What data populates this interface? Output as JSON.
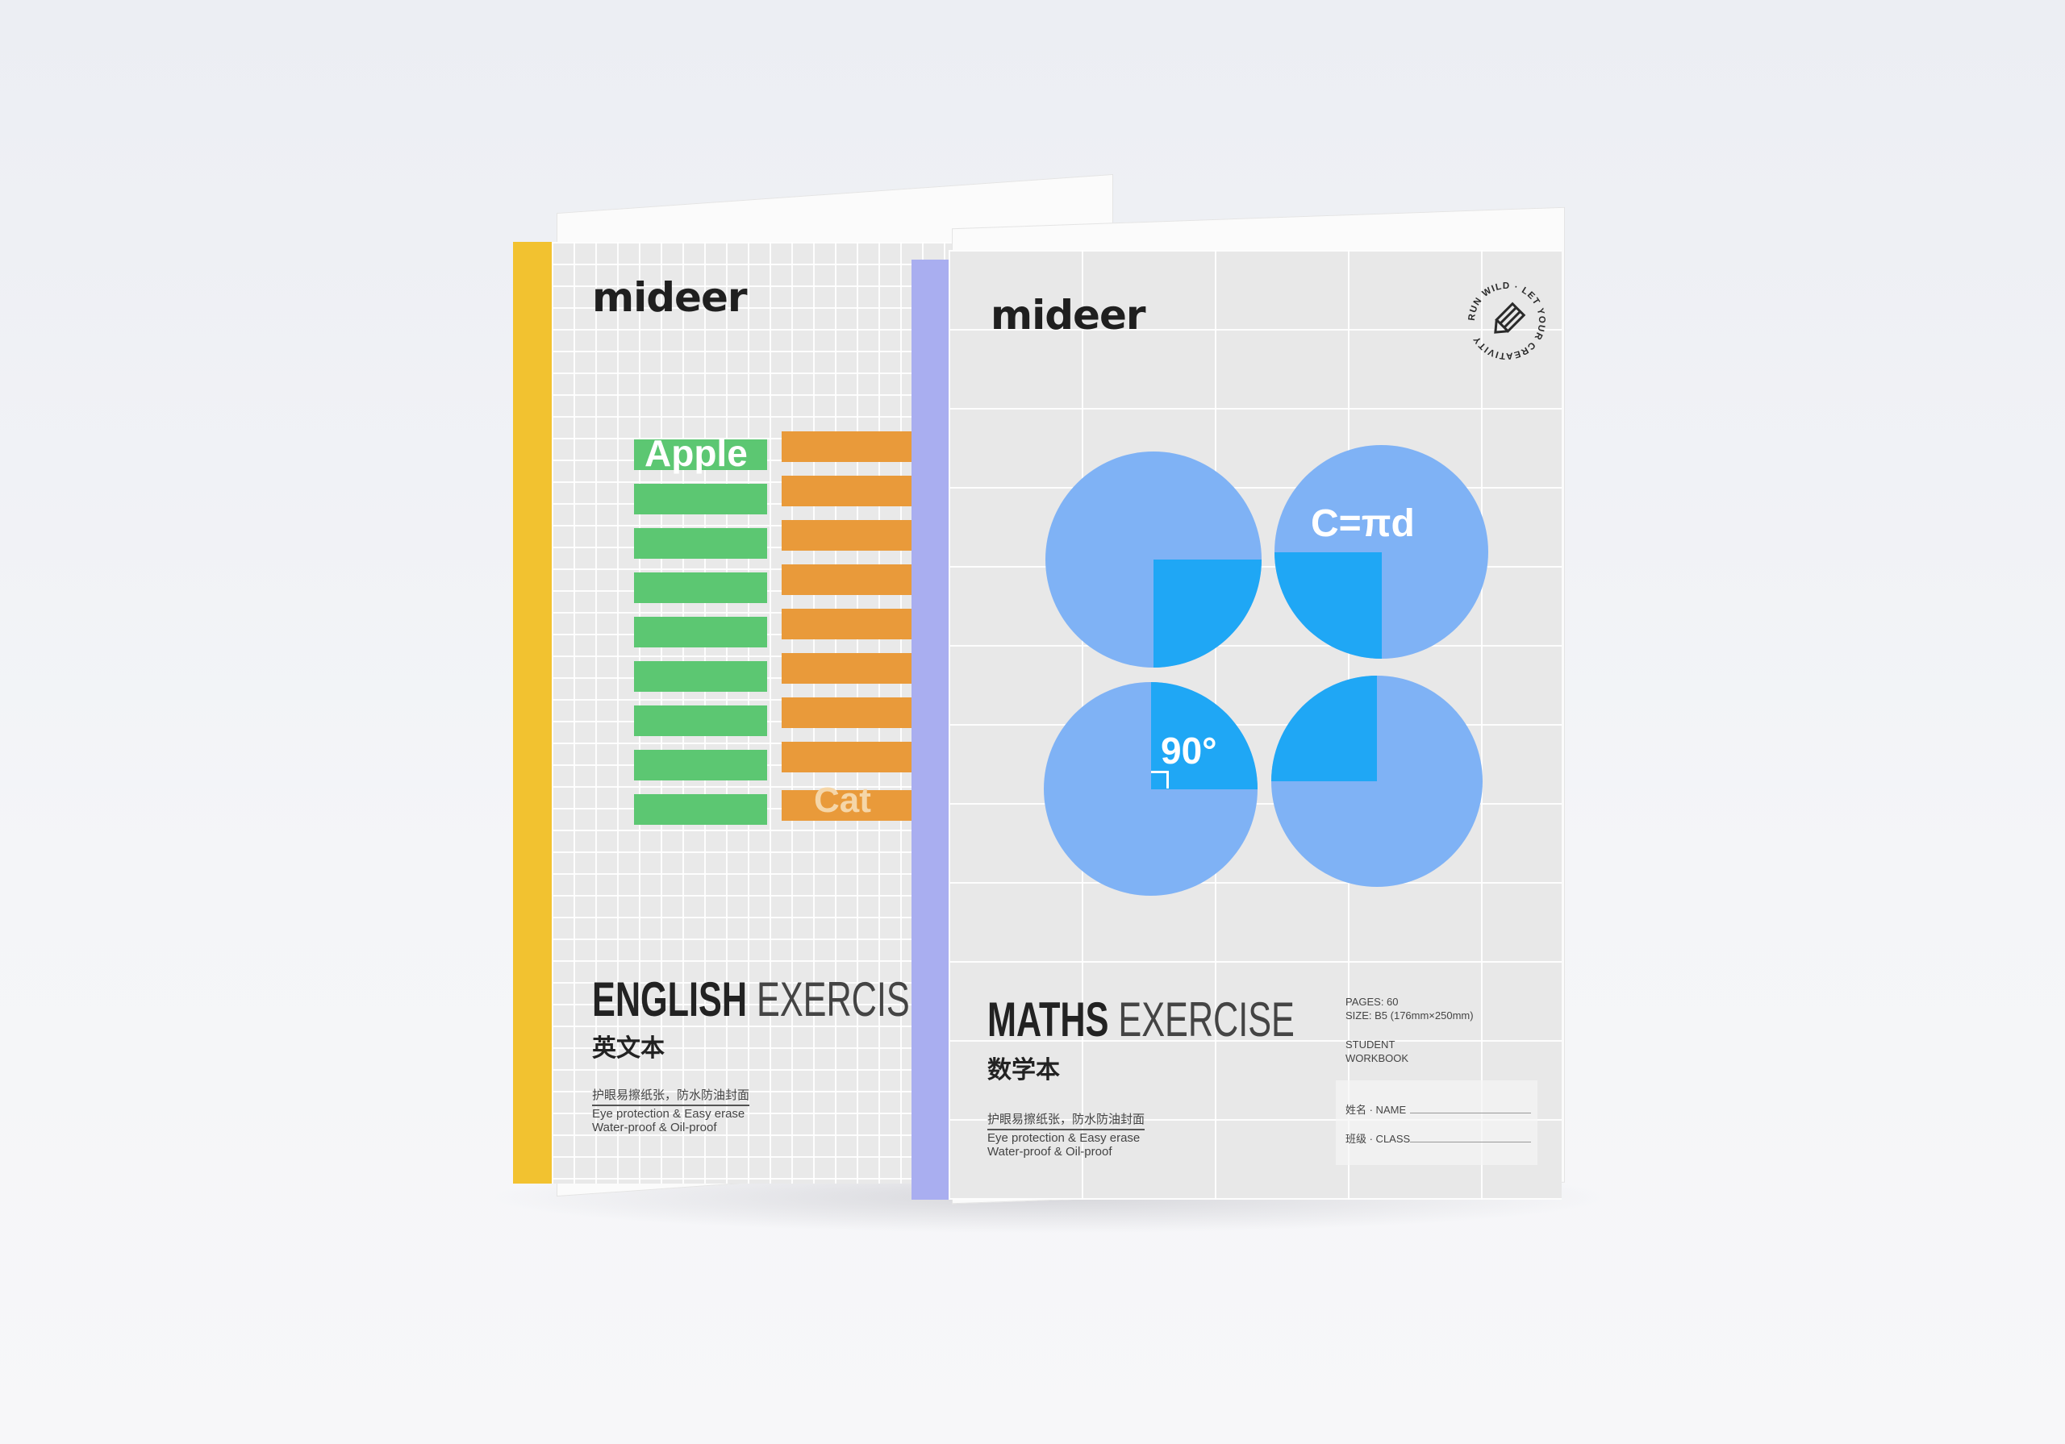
{
  "english_book": {
    "brand": "mideer",
    "words": [
      "Apple",
      "Cat"
    ],
    "title_bold": "ENGLISH",
    "title_light": "EXERCISE",
    "title_cn": "英文本",
    "feature_cn": "护眼易擦纸张，防水防油封面",
    "feature_en_1": "Eye protection & Easy erase",
    "feature_en_2": "Water-proof & Oil-proof",
    "spine_color": "#f2c230",
    "green": "#5cc772",
    "orange": "#e99a3a"
  },
  "maths_book": {
    "brand": "mideer",
    "badge_text": "RUN WILD · LET YOUR CREATIVITY",
    "formula": "C=πd",
    "angle": "90°",
    "title_bold": "MATHS",
    "title_light": "EXERCISE",
    "title_cn": "数学本",
    "feature_cn": "护眼易擦纸张，防水防油封面",
    "feature_en_1": "Eye protection & Easy erase",
    "feature_en_2": "Water-proof & Oil-proof",
    "pages": "PAGES: 60",
    "size": "SIZE: B5 (176mm×250mm)",
    "student": "STUDENT",
    "workbook": "WORKBOOK",
    "name_label": "姓名 · NAME",
    "class_label": "班级 · CLASS",
    "spine_color": "#a9aef0",
    "circle_color": "#7fb2f5",
    "square_color": "#1fa7f5"
  }
}
